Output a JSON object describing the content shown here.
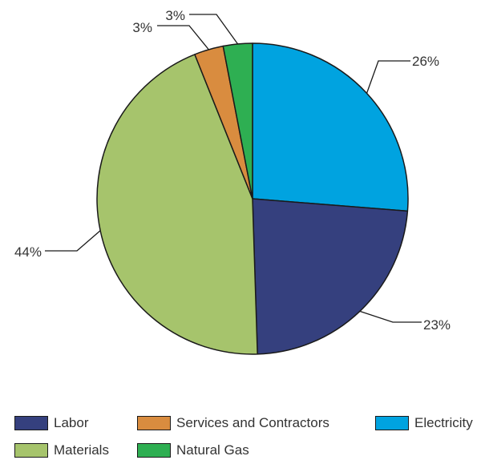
{
  "chart_data": {
    "type": "pie",
    "title": "",
    "slices": [
      {
        "name": "Electricity",
        "value": 26,
        "label": "26%",
        "color": "#00a3e0"
      },
      {
        "name": "Labor",
        "value": 23,
        "label": "23%",
        "color": "#35407e"
      },
      {
        "name": "Materials",
        "value": 44,
        "label": "44%",
        "color": "#a6c46c"
      },
      {
        "name": "Services and Contractors",
        "value": 3,
        "label": "3%",
        "color": "#d98c3f"
      },
      {
        "name": "Natural Gas",
        "value": 3,
        "label": "3%",
        "color": "#2eaf52"
      }
    ],
    "legend": {
      "position": "bottom",
      "rows": [
        [
          "Labor",
          "Services and Contractors",
          "Electricity"
        ],
        [
          "Materials",
          "Natural Gas"
        ]
      ]
    }
  }
}
